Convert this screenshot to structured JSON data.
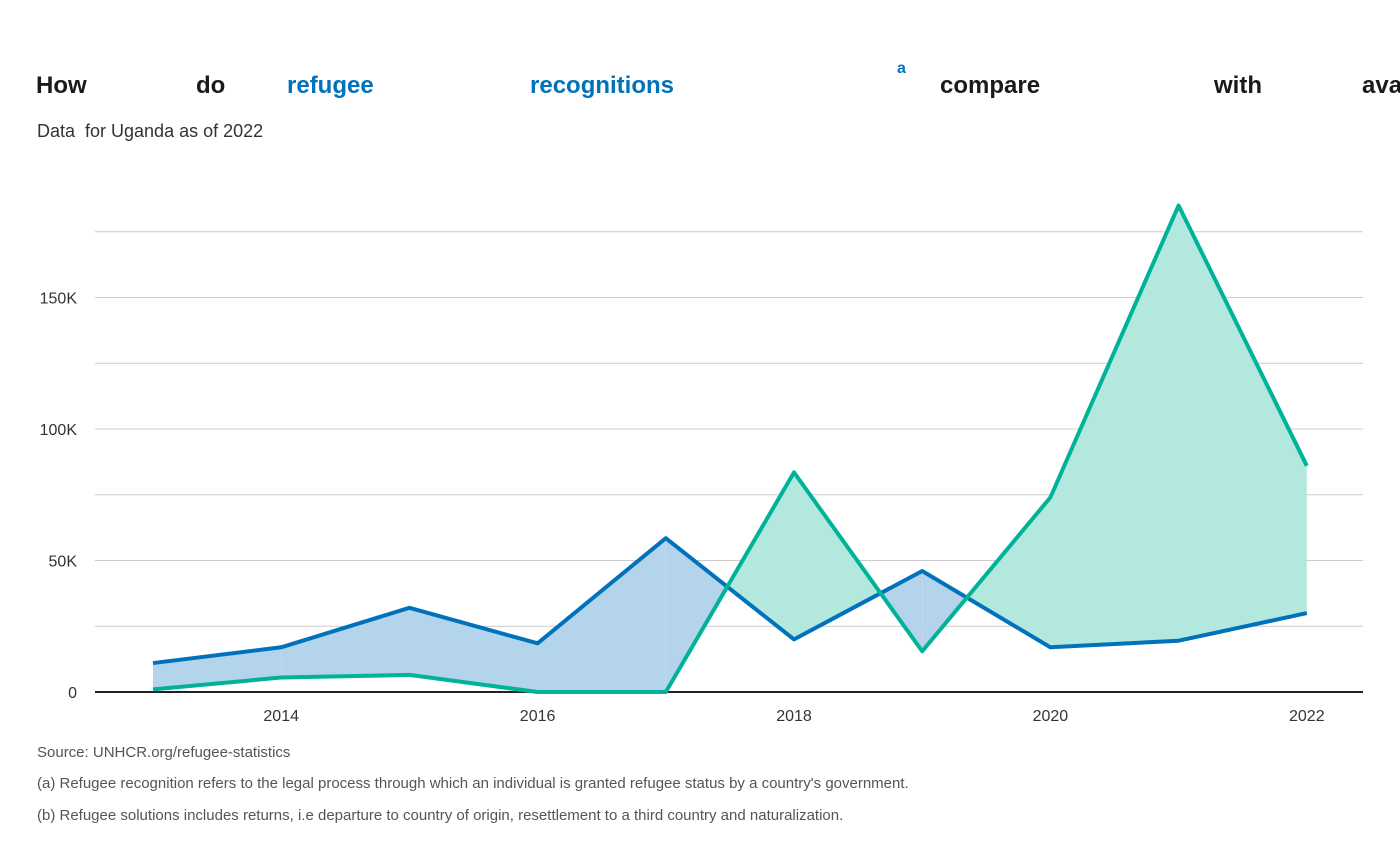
{
  "title": {
    "words": [
      {
        "text": "How",
        "highlight": false
      },
      {
        "text": "do",
        "highlight": false
      },
      {
        "text": "refugee",
        "highlight": true
      },
      {
        "text": "recognitions",
        "highlight": true
      },
      {
        "text": "a",
        "highlight": true,
        "superscript": true
      },
      {
        "text": "compare",
        "highlight": false
      },
      {
        "text": "with",
        "highlight": false
      },
      {
        "text": "ava",
        "highlight": false
      }
    ]
  },
  "subtitle": "Data  for Uganda as of 2022",
  "chart_data": {
    "type": "area",
    "x": [
      2013,
      2014,
      2015,
      2016,
      2017,
      2018,
      2019,
      2020,
      2021,
      2022
    ],
    "x_ticks": [
      "2014",
      "2016",
      "2018",
      "2020",
      "2022"
    ],
    "y_ticks": [
      "0",
      "50K",
      "100K",
      "150K"
    ],
    "ylim": [
      0,
      190000
    ],
    "grid": true,
    "series": [
      {
        "values": [
          11000,
          17000,
          32000,
          18500,
          58500,
          20000,
          46000,
          17000,
          19500,
          30000
        ],
        "color": "#0072bc",
        "fill": "#b3d4eb"
      },
      {
        "values": [
          1000,
          5500,
          6500,
          0,
          0,
          83500,
          15500,
          74000,
          185000,
          86000
        ],
        "color": "#00b398",
        "fill": "#b2e8de"
      }
    ]
  },
  "notes": {
    "source": "Source: UNHCR.org/refugee-statistics",
    "note_a": " (a) Refugee recognition refers to the legal process through which an individual is granted refugee status by a country's government.",
    "note_b": " (b) Refugee solutions includes returns, i.e departure to country of origin, resettlement to a third country and naturalization."
  }
}
